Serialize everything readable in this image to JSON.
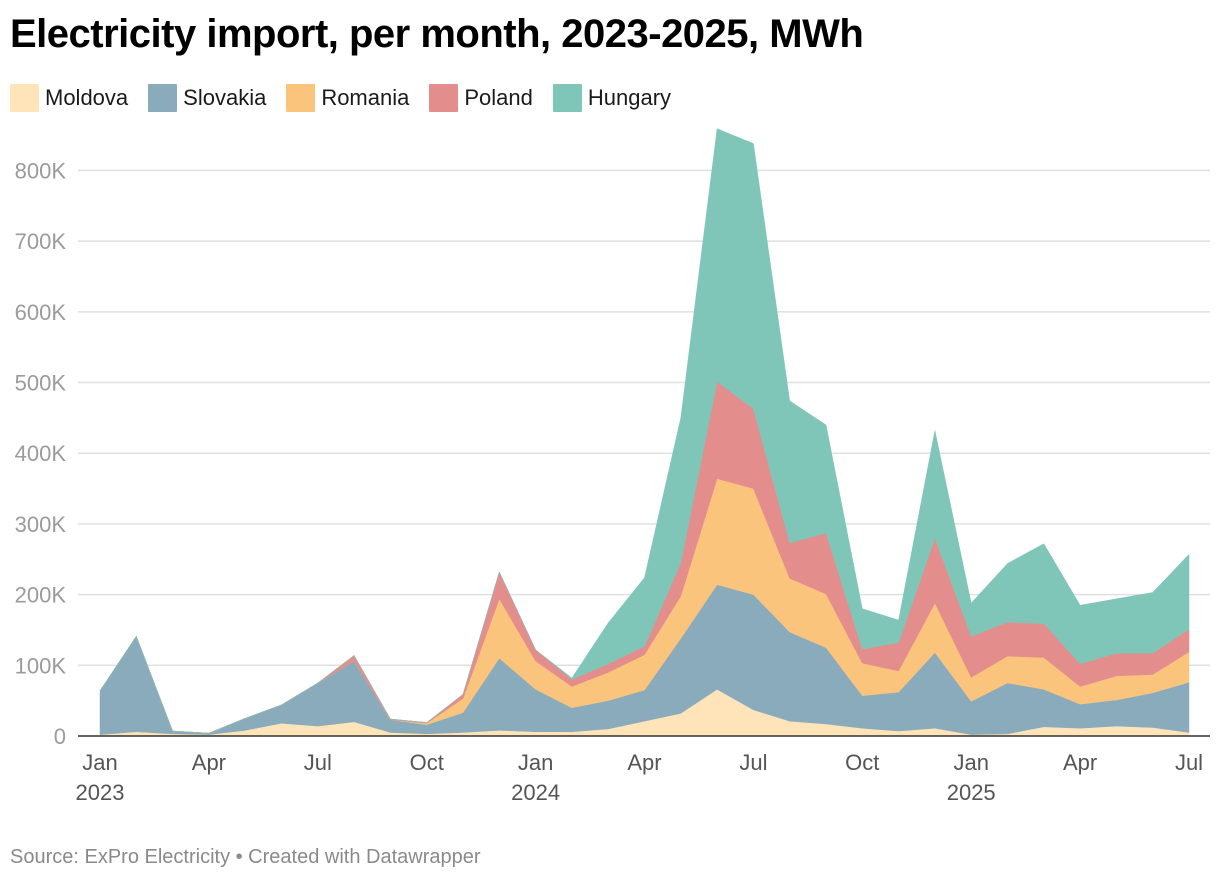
{
  "title": "Electricity import, per month, 2023-2025, MWh",
  "source": "Source: ExPro Electricity • Created with Datawrapper",
  "chart_data": {
    "type": "area",
    "stacked": true,
    "title": "Electricity import, per month, 2023-2025, MWh",
    "xlabel": "",
    "ylabel": "",
    "ylim": [
      0,
      860000
    ],
    "grid": true,
    "legend_position": "top-left",
    "x": [
      "2023-01",
      "2023-02",
      "2023-03",
      "2023-04",
      "2023-05",
      "2023-06",
      "2023-07",
      "2023-08",
      "2023-09",
      "2023-10",
      "2023-11",
      "2023-12",
      "2024-01",
      "2024-02",
      "2024-03",
      "2024-04",
      "2024-05",
      "2024-06",
      "2024-07",
      "2024-08",
      "2024-09",
      "2024-10",
      "2024-11",
      "2024-12",
      "2025-01",
      "2025-02",
      "2025-03",
      "2025-04",
      "2025-05",
      "2025-06",
      "2025-07"
    ],
    "y_ticks": [
      {
        "value": 0,
        "label": "0"
      },
      {
        "value": 100000,
        "label": "100K"
      },
      {
        "value": 200000,
        "label": "200K"
      },
      {
        "value": 300000,
        "label": "300K"
      },
      {
        "value": 400000,
        "label": "400K"
      },
      {
        "value": 500000,
        "label": "500K"
      },
      {
        "value": 600000,
        "label": "600K"
      },
      {
        "value": 700000,
        "label": "700K"
      },
      {
        "value": 800000,
        "label": "800K"
      }
    ],
    "x_ticks": [
      {
        "index": 0,
        "month": "Jan",
        "year": "2023"
      },
      {
        "index": 3,
        "month": "Apr",
        "year": ""
      },
      {
        "index": 6,
        "month": "Jul",
        "year": ""
      },
      {
        "index": 9,
        "month": "Oct",
        "year": ""
      },
      {
        "index": 12,
        "month": "Jan",
        "year": "2024"
      },
      {
        "index": 15,
        "month": "Apr",
        "year": ""
      },
      {
        "index": 18,
        "month": "Jul",
        "year": ""
      },
      {
        "index": 21,
        "month": "Oct",
        "year": ""
      },
      {
        "index": 24,
        "month": "Jan",
        "year": "2025"
      },
      {
        "index": 27,
        "month": "Apr",
        "year": ""
      },
      {
        "index": 30,
        "month": "Jul",
        "year": ""
      }
    ],
    "series": [
      {
        "name": "Moldova",
        "color": "#fee4b8",
        "values": [
          2000,
          6000,
          3000,
          2000,
          8000,
          18000,
          14000,
          20000,
          5000,
          3000,
          5000,
          8000,
          6000,
          6000,
          10000,
          21000,
          32000,
          66000,
          37000,
          21000,
          17000,
          11000,
          7000,
          11000,
          2000,
          3000,
          13000,
          11000,
          14000,
          12000,
          5000
        ]
      },
      {
        "name": "Slovakia",
        "color": "#8aabbb",
        "values": [
          62000,
          135000,
          4000,
          2000,
          17000,
          26000,
          61000,
          86000,
          18000,
          13000,
          28000,
          102000,
          60000,
          34000,
          40000,
          44000,
          106000,
          148000,
          163000,
          126000,
          108000,
          46000,
          55000,
          107000,
          47000,
          72000,
          53000,
          34000,
          37000,
          49000,
          71000
        ]
      },
      {
        "name": "Romania",
        "color": "#fac47d",
        "values": [
          0,
          0,
          0,
          0,
          0,
          0,
          0,
          0,
          0,
          2000,
          20000,
          84000,
          40000,
          30000,
          40000,
          50000,
          60000,
          150000,
          150000,
          76000,
          76000,
          46000,
          30000,
          70000,
          34000,
          38000,
          45000,
          25000,
          34000,
          26000,
          43000
        ]
      },
      {
        "name": "Poland",
        "color": "#e48d8d",
        "values": [
          0,
          0,
          0,
          0,
          0,
          0,
          0,
          8000,
          1000,
          1000,
          6000,
          38000,
          16000,
          10000,
          12000,
          12000,
          47000,
          137000,
          113000,
          50000,
          86000,
          20000,
          40000,
          92000,
          58000,
          48000,
          48000,
          32000,
          32000,
          30000,
          32000
        ]
      },
      {
        "name": "Hungary",
        "color": "#80c6b8",
        "values": [
          0,
          0,
          0,
          0,
          0,
          0,
          0,
          0,
          0,
          0,
          0,
          0,
          0,
          2000,
          58000,
          97000,
          205000,
          358000,
          375000,
          201000,
          153000,
          57000,
          32000,
          152000,
          47000,
          83000,
          113000,
          83000,
          77000,
          86000,
          106000
        ]
      }
    ]
  }
}
